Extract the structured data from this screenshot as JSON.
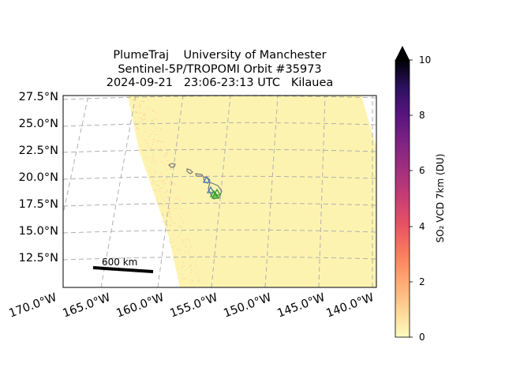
{
  "title": {
    "line1": "PlumeTraj    University of Manchester",
    "line2": "Sentinel-5P/TROPOMI Orbit #35973",
    "line3": "2024-09-21   23:06-23:13 UTC   Kilauea"
  },
  "map": {
    "lat_labels": [
      "27.5°N",
      "25.0°N",
      "22.5°N",
      "20.0°N",
      "17.5°N",
      "15.0°N",
      "12.5°N"
    ],
    "lon_labels": [
      "170.0°W",
      "165.0°W",
      "160.0°W",
      "155.0°W",
      "150.0°W",
      "145.0°W",
      "140.0°W"
    ],
    "scale_bar_label": "600 km",
    "swath_color": "#fdf3b0",
    "gridline_color": "#b0b0b0"
  },
  "colorbar": {
    "label": "SO₂ VCD 7km (DU)",
    "ticks": [
      "0",
      "2",
      "4",
      "6",
      "8",
      "10"
    ],
    "range": [
      0,
      10
    ],
    "colormap": "magma_r",
    "extend": "max"
  }
}
